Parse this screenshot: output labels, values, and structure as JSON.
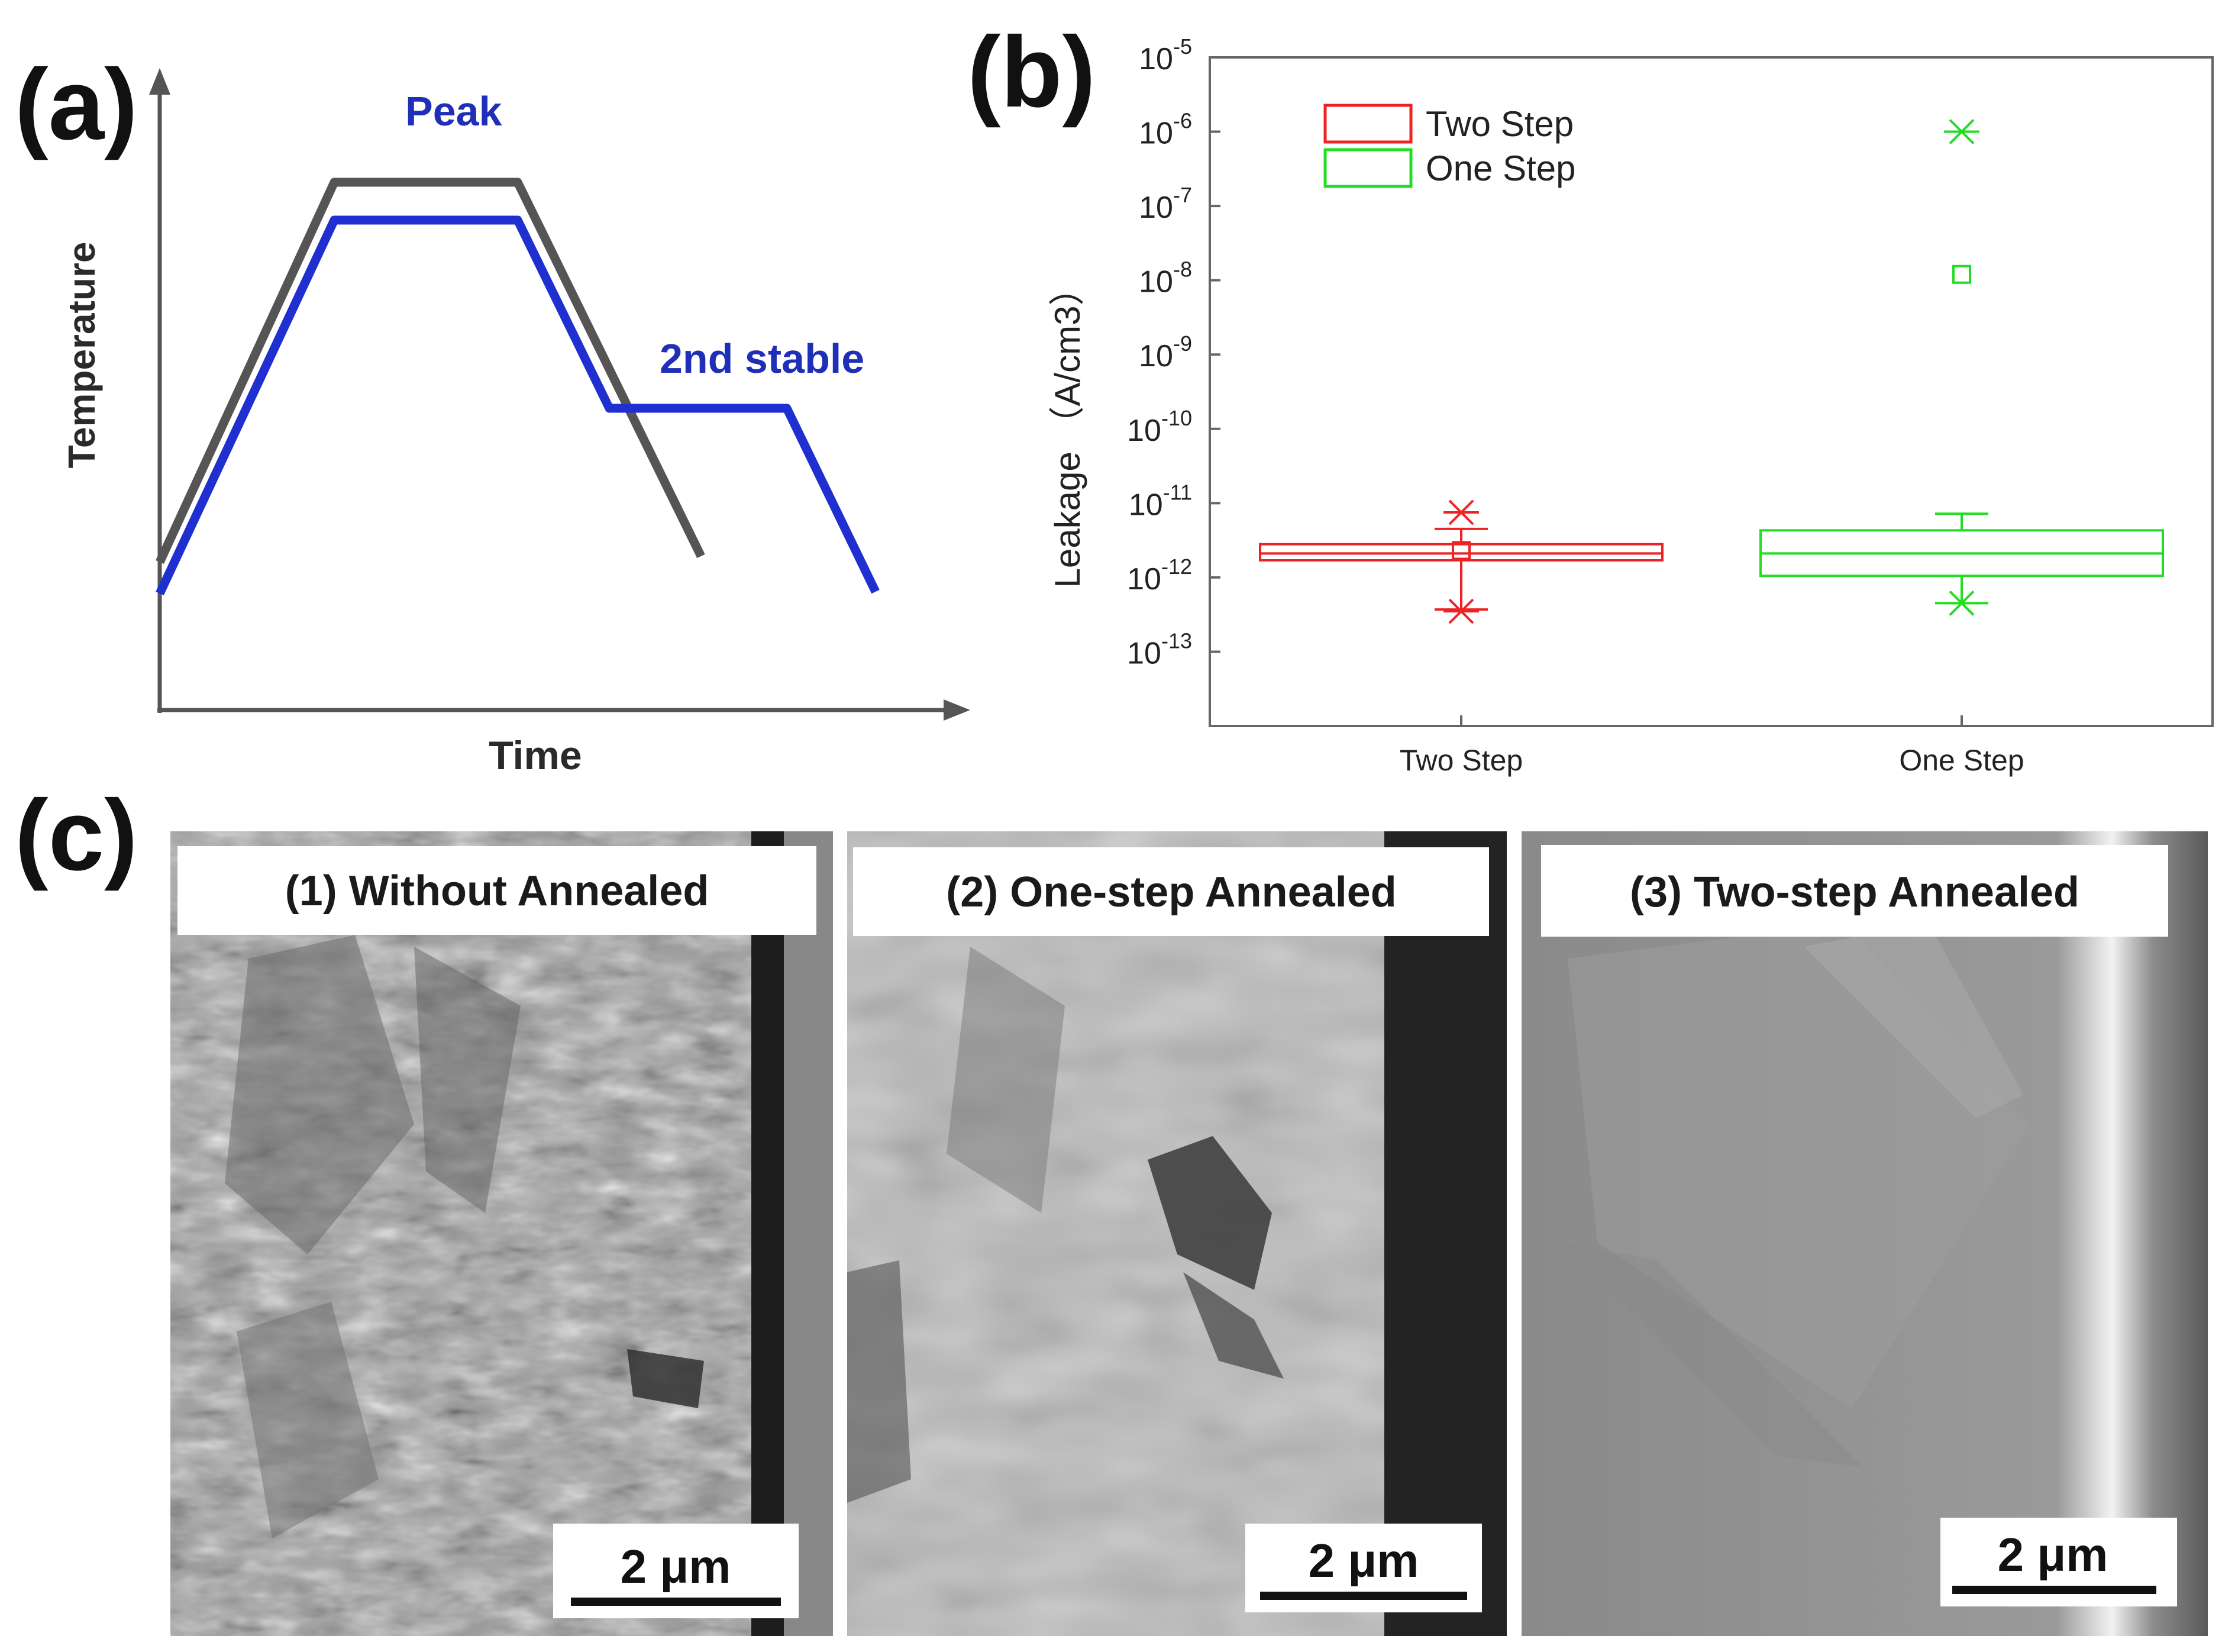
{
  "panels": {
    "a": {
      "label": "(a)",
      "peak_label": "Peak",
      "stable_label": "2nd stable",
      "ylabel": "Temperature",
      "xlabel": "Time"
    },
    "b": {
      "label": "(b)"
    },
    "c": {
      "label": "(c)",
      "images": [
        {
          "title": "(1) Without Annealed",
          "scale": "2 μm"
        },
        {
          "title": "(2) One-step Annealed",
          "scale": "2 μm"
        },
        {
          "title": "(3) Two-step Annealed",
          "scale": "2 μm"
        }
      ]
    }
  },
  "colors": {
    "two_step": "#ee2222",
    "one_step": "#22dd22",
    "curve_blue": "#1f2fd0",
    "curve_gray": "#555555"
  },
  "chart_data": [
    {
      "type": "line",
      "title": "",
      "xlabel": "Time",
      "ylabel": "Temperature",
      "series": [
        {
          "x": [
            0.0,
            0.28,
            0.57,
            0.7,
            0.83,
            0.88,
            1.0
          ],
          "y": [
            0.23,
            0.84,
            0.84,
            0.6,
            0.6,
            0.6,
            0.19
          ]
        },
        {
          "x": [
            0.0,
            0.27,
            0.54,
            0.82
          ],
          "y": [
            0.27,
            0.9,
            0.9,
            0.26
          ]
        }
      ],
      "annotations": [
        "Peak",
        "2nd stable"
      ],
      "grid": false
    },
    {
      "type": "box",
      "title": "",
      "xlabel": "",
      "ylabel": "Leakage （A/cm3）",
      "yscale": "log",
      "ylim": [
        1e-14,
        1e-05
      ],
      "ytick_labels": [
        "10-5",
        "10-6",
        "10-7",
        "10-8",
        "10-9",
        "10-10",
        "10-11",
        "10-12",
        "10-13"
      ],
      "categories": [
        "Two Step",
        "One Step"
      ],
      "series": [
        {
          "name": "Two Step",
          "whisker_low": 3.7e-13,
          "q1": 1.7e-12,
          "median": 2.1e-12,
          "q3": 2.8e-12,
          "whisker_high": 4.5e-12,
          "mean": 2.3e-12,
          "extremes": [
            3.5e-13,
            7.5e-12
          ],
          "outliers": []
        },
        {
          "name": "One Step",
          "whisker_low": 4.5e-13,
          "q1": 1.05e-12,
          "median": 2.1e-12,
          "q3": 4.3e-12,
          "whisker_high": 7.2e-12,
          "mean": 1.2e-08,
          "extremes": [
            4.5e-13,
            1e-06
          ],
          "outliers": []
        }
      ],
      "legend": {
        "entries": [
          "Two Step",
          "One Step"
        ],
        "placement": "top-left"
      },
      "grid": false
    }
  ]
}
